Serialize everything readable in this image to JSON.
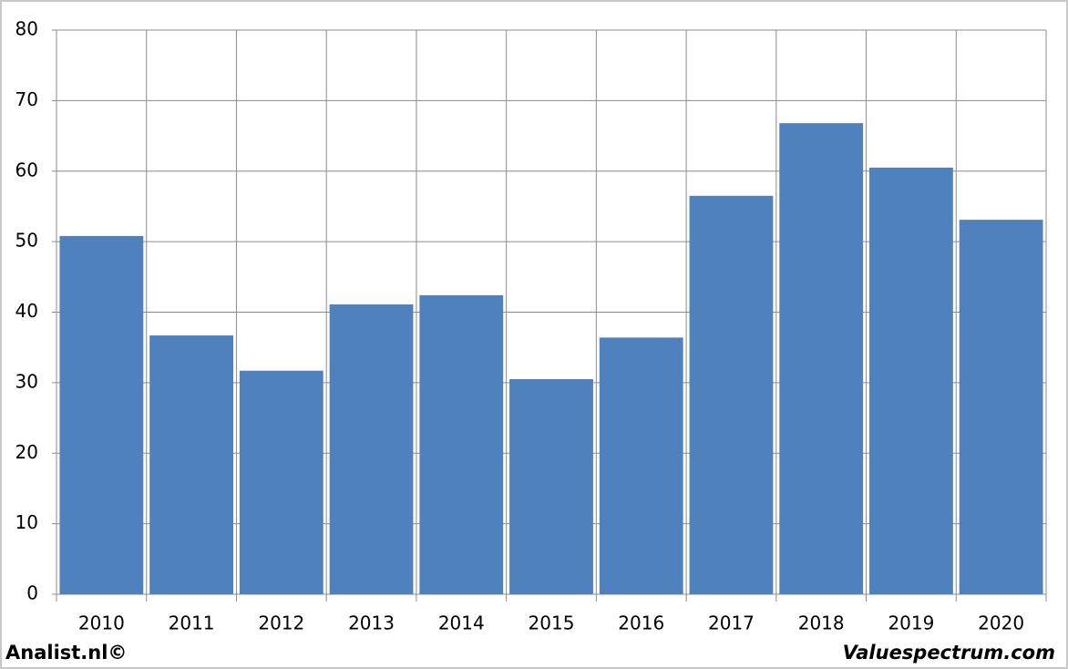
{
  "chart_data": {
    "type": "bar",
    "categories": [
      "2010",
      "2011",
      "2012",
      "2013",
      "2014",
      "2015",
      "2016",
      "2017",
      "2018",
      "2019",
      "2020"
    ],
    "values": [
      50.8,
      36.7,
      31.7,
      41.1,
      42.4,
      30.5,
      36.4,
      56.5,
      66.8,
      60.5,
      53.1
    ],
    "color": "#4f81bd",
    "ylim": [
      0,
      80
    ],
    "yticks": [
      0,
      10,
      20,
      30,
      40,
      50,
      60,
      70,
      80
    ],
    "grid": true,
    "source_left": "Analist.nl©",
    "source_right": "Valuespectrum.com"
  }
}
